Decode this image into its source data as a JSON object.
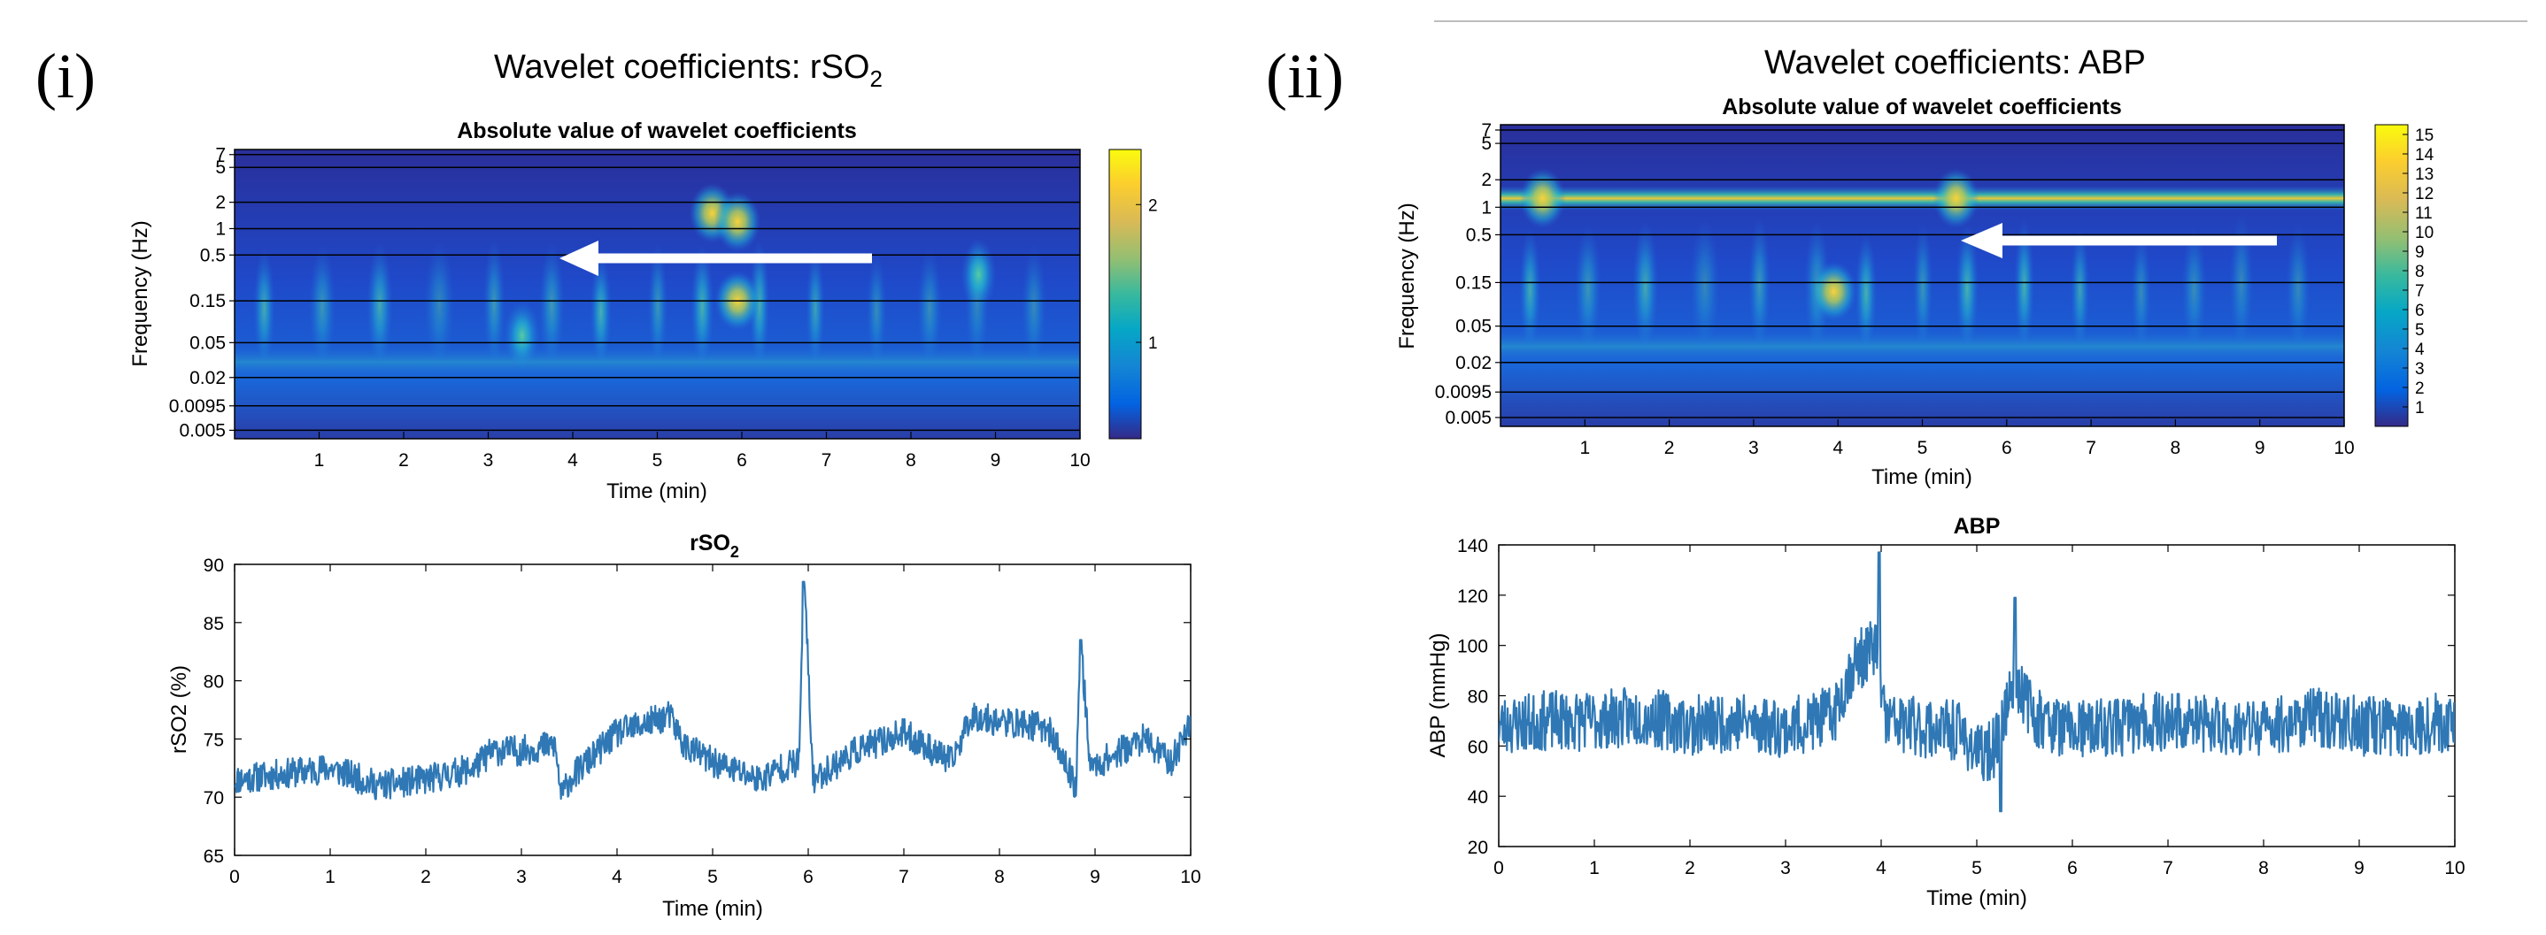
{
  "figure": {
    "top_rule_color": "#bdbdbd"
  },
  "panels": [
    {
      "label": "(i)",
      "title_main": "Wavelet coefficients: rSO",
      "title_sub": "2",
      "scalogram": {
        "title": "Absolute value of wavelet coefficients",
        "ylabel": "Frequency (Hz)",
        "xlabel": "Time (min)",
        "yticks": [
          "7",
          "5",
          "2",
          "1",
          "0.5",
          "0.15",
          "0.05",
          "0.02",
          "0.0095",
          "0.005"
        ],
        "xticks": [
          "1",
          "2",
          "3",
          "4",
          "5",
          "6",
          "7",
          "8",
          "9",
          "10"
        ],
        "colorbar_ticks": [
          "2",
          "1"
        ],
        "arrow": "white arrow pointing left at ~0.5 Hz"
      }
    },
    {
      "label": "(ii)",
      "title_main": "Wavelet coefficients: ABP",
      "title_sub": "",
      "scalogram": {
        "title": "Absolute value of wavelet coefficients",
        "ylabel": "Frequency (Hz)",
        "xlabel": "Time (min)",
        "yticks": [
          "7",
          "5",
          "2",
          "1",
          "0.5",
          "0.15",
          "0.05",
          "0.02",
          "0.0095",
          "0.005"
        ],
        "xticks": [
          "1",
          "2",
          "3",
          "4",
          "5",
          "6",
          "7",
          "8",
          "9",
          "10"
        ],
        "colorbar_ticks": [
          "15",
          "14",
          "13",
          "12",
          "11",
          "10",
          "9",
          "8",
          "7",
          "6",
          "5",
          "4",
          "3",
          "2",
          "1"
        ],
        "arrow": "white arrow pointing left at ~0.5 Hz"
      }
    }
  ],
  "chart_data": [
    {
      "type": "heatmap",
      "title": "Absolute value of wavelet coefficients",
      "xlabel": "Time (min)",
      "ylabel": "Frequency (Hz)",
      "xlim": [
        0,
        10
      ],
      "yticks": [
        "7",
        "5",
        "2",
        "1",
        "0.5",
        "0.15",
        "0.05",
        "0.02",
        "0.0095",
        "0.005"
      ],
      "colorbar_range": [
        0.3,
        2.4
      ],
      "colorbar_ticks": [
        1,
        2
      ],
      "colormap": "parula",
      "hotspots": [
        {
          "time": 5.95,
          "freq": 0.15,
          "value": 1.7
        },
        {
          "time": 5.65,
          "freq": 1.5,
          "value": 1.5
        },
        {
          "time": 5.95,
          "freq": 1.2,
          "value": 1.6
        },
        {
          "time": 3.4,
          "freq": 0.06,
          "value": 1.3
        },
        {
          "time": 8.8,
          "freq": 0.3,
          "value": 1.1
        }
      ]
    },
    {
      "type": "line",
      "title": "rSO",
      "title_sub": "2",
      "xlabel": "Time (min)",
      "ylabel": "rSO2 (%)",
      "xlim": [
        0,
        10
      ],
      "ylim": [
        65,
        90
      ],
      "xticks": [
        0,
        1,
        2,
        3,
        4,
        5,
        6,
        7,
        8,
        9,
        10
      ],
      "yticks": [
        65,
        70,
        75,
        80,
        85,
        90
      ],
      "color": "#2f78b5",
      "series": [
        {
          "name": "rSO2",
          "x": [
            0,
            0.5,
            1,
            1.5,
            2,
            2.5,
            2.7,
            3,
            3.35,
            3.42,
            3.5,
            4,
            4.55,
            4.7,
            5,
            5.5,
            5.7,
            5.9,
            5.96,
            6.05,
            6.5,
            7,
            7.5,
            7.7,
            8,
            8.5,
            8.8,
            8.85,
            8.95,
            9.5,
            9.8,
            10
          ],
          "y": [
            71.5,
            72,
            72.5,
            71,
            71.5,
            72.5,
            74,
            74,
            74.5,
            70,
            71.5,
            75.5,
            77,
            74.5,
            73,
            71.5,
            72.5,
            73,
            88.5,
            71.5,
            74,
            75.5,
            73,
            77,
            76.5,
            76,
            71,
            83.5,
            72.5,
            75,
            73,
            76.5
          ]
        }
      ],
      "noise_band": 2.6,
      "annotations": [
        {
          "time": 5.95,
          "value": 88.5,
          "kind": "spike"
        },
        {
          "time": 8.85,
          "value": 83.5,
          "kind": "spike"
        }
      ]
    },
    {
      "type": "heatmap",
      "title": "Absolute value of wavelet coefficients",
      "xlabel": "Time (min)",
      "ylabel": "Frequency (Hz)",
      "xlim": [
        0,
        10
      ],
      "yticks": [
        "7",
        "5",
        "2",
        "1",
        "0.5",
        "0.15",
        "0.05",
        "0.02",
        "0.0095",
        "0.005"
      ],
      "colorbar_range": [
        0,
        15.5
      ],
      "colorbar_ticks": [
        1,
        2,
        3,
        4,
        5,
        6,
        7,
        8,
        9,
        10,
        11,
        12,
        13,
        14,
        15
      ],
      "colormap": "parula",
      "hotspots": [
        {
          "time": 5.4,
          "freq": 1.25,
          "value": 15
        },
        {
          "time": 3.95,
          "freq": 0.12,
          "value": 12
        },
        {
          "time": 0.5,
          "freq": 1.25,
          "value": 12
        }
      ],
      "bands": [
        {
          "freq": 1.25,
          "value": 11
        }
      ]
    },
    {
      "type": "line",
      "title": "ABP",
      "xlabel": "Time (min)",
      "ylabel": "ABP (mmHg)",
      "xlim": [
        0,
        10
      ],
      "ylim": [
        20,
        140
      ],
      "xticks": [
        0,
        1,
        2,
        3,
        4,
        5,
        6,
        7,
        8,
        9,
        10
      ],
      "yticks": [
        20,
        40,
        60,
        80,
        100,
        120,
        140
      ],
      "color": "#2f78b5",
      "series": [
        {
          "name": "ABP",
          "x": [
            0,
            0.5,
            1,
            1.5,
            2,
            2.5,
            3,
            3.5,
            3.7,
            3.95,
            4.05,
            4.3,
            4.8,
            5.05,
            5.2,
            5.4,
            5.6,
            6,
            6.5,
            7,
            7.5,
            8,
            8.5,
            9,
            9.5,
            10
          ],
          "y": [
            68,
            70,
            70,
            72,
            68,
            70,
            67,
            72,
            92,
            100,
            70,
            68,
            66,
            56,
            60,
            88,
            72,
            66,
            68,
            70,
            68,
            67,
            72,
            68,
            68,
            70
          ]
        }
      ],
      "noise_band": 24,
      "annotations": [
        {
          "time": 3.98,
          "value": 137,
          "kind": "peak"
        },
        {
          "time": 5.25,
          "value": 34,
          "kind": "trough"
        },
        {
          "time": 5.4,
          "value": 119,
          "kind": "peak"
        }
      ]
    }
  ]
}
